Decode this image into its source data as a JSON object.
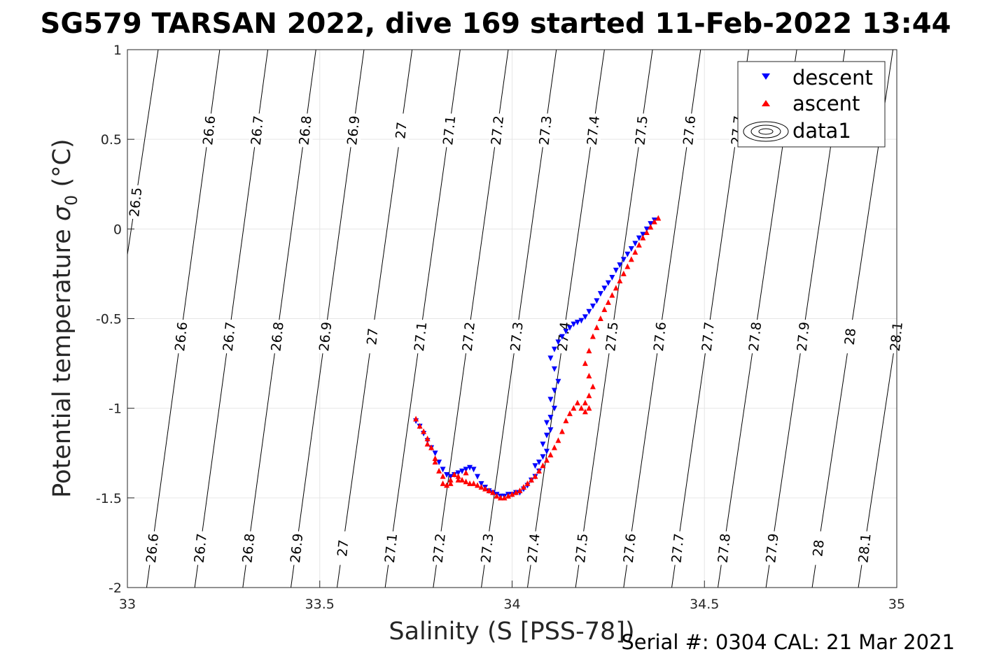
{
  "chart_data": {
    "type": "scatter",
    "title": "SG579 TARSAN 2022, dive 169 started 11-Feb-2022 13:44",
    "xlabel": "Salinity (S [PSS-78])",
    "ylabel_main": "Potential temperature ",
    "ylabel_sigma": "σ",
    "ylabel_sub": "0",
    "ylabel_unit": " (°C)",
    "xlim": [
      33,
      35
    ],
    "ylim": [
      -2,
      1
    ],
    "xticks": [
      "33",
      "33.5",
      "34",
      "34.5",
      "35"
    ],
    "yticks": [
      "-2",
      "-1.5",
      "-1",
      "-0.5",
      "0",
      "0.5",
      "1"
    ],
    "grid": true,
    "legend_position": "top-right",
    "legend": [
      "descent",
      "ascent",
      "data1"
    ],
    "footer": "Serial #: 0304  CAL: 21 Mar 2021",
    "colors": {
      "descent": "#0000ff",
      "ascent": "#ff0000",
      "contour": "#000000",
      "grid": "#e6e6e6"
    },
    "isopycnals": [
      {
        "level": 26.5,
        "bottom_x": 32.87,
        "top_x": 33.08
      },
      {
        "level": 26.6,
        "bottom_x": 33.05,
        "top_x": 33.24
      },
      {
        "level": 26.7,
        "bottom_x": 33.175,
        "top_x": 33.365
      },
      {
        "level": 26.8,
        "bottom_x": 33.3,
        "top_x": 33.49
      },
      {
        "level": 26.9,
        "bottom_x": 33.425,
        "top_x": 33.615
      },
      {
        "level": 27.0,
        "bottom_x": 33.545,
        "top_x": 33.74
      },
      {
        "level": 27.1,
        "bottom_x": 33.67,
        "top_x": 33.865
      },
      {
        "level": 27.2,
        "bottom_x": 33.795,
        "top_x": 33.99
      },
      {
        "level": 27.3,
        "bottom_x": 33.92,
        "top_x": 34.115
      },
      {
        "level": 27.4,
        "bottom_x": 34.04,
        "top_x": 34.24
      },
      {
        "level": 27.5,
        "bottom_x": 34.165,
        "top_x": 34.365
      },
      {
        "level": 27.6,
        "bottom_x": 34.29,
        "top_x": 34.49
      },
      {
        "level": 27.7,
        "bottom_x": 34.415,
        "top_x": 34.615
      },
      {
        "level": 27.8,
        "bottom_x": 34.535,
        "top_x": 34.74
      },
      {
        "level": 27.9,
        "bottom_x": 34.66,
        "top_x": 34.865
      },
      {
        "level": 28.0,
        "bottom_x": 34.78,
        "top_x": 34.99
      },
      {
        "level": 28.1,
        "bottom_x": 34.9,
        "top_x": 35.11
      }
    ],
    "isopycnal_label_rows": [
      {
        "y": 0.55,
        "levels": [
          "26.6",
          "26.7",
          "26.8",
          "26.9",
          "27",
          "27.1",
          "27.2",
          "27.3",
          "27.4",
          "27.5",
          "27.6",
          "27.7"
        ]
      },
      {
        "y": 0.15,
        "levels": [
          "26.5"
        ]
      },
      {
        "y": -0.6,
        "levels": [
          "26.6",
          "26.7",
          "26.8",
          "26.9",
          "27",
          "27.1",
          "27.2",
          "27.3",
          "27.4",
          "27.5",
          "27.6",
          "27.7",
          "27.8",
          "27.9",
          "28",
          "28.1"
        ]
      },
      {
        "y": -1.78,
        "levels": [
          "26.6",
          "26.7",
          "26.8",
          "26.9",
          "27",
          "27.1",
          "27.2",
          "27.3",
          "27.4",
          "27.5",
          "27.6",
          "27.7",
          "27.8",
          "27.9",
          "28",
          "28.1"
        ]
      }
    ],
    "series": [
      {
        "name": "descent",
        "marker": "triangle-down",
        "x": [
          34.37,
          34.36,
          34.35,
          34.34,
          34.33,
          34.32,
          34.31,
          34.3,
          34.29,
          34.28,
          34.27,
          34.26,
          34.25,
          34.24,
          34.23,
          34.22,
          34.21,
          34.2,
          34.19,
          34.18,
          34.17,
          34.16,
          34.15,
          34.14,
          34.13,
          34.12,
          34.11,
          34.1,
          34.11,
          34.12,
          34.11,
          34.1,
          34.11,
          34.1,
          34.09,
          34.1,
          34.09,
          34.08,
          34.09,
          34.08,
          34.07,
          34.06,
          34.07,
          34.06,
          34.05,
          34.04,
          34.03,
          34.02,
          34.01,
          34.0,
          33.99,
          33.98,
          33.97,
          33.96,
          33.95,
          33.94,
          33.93,
          33.92,
          33.91,
          33.9,
          33.89,
          33.88,
          33.87,
          33.86,
          33.85,
          33.84,
          33.83,
          33.82,
          33.81,
          33.8,
          33.79,
          33.78,
          33.77,
          33.76,
          33.75
        ],
        "y": [
          0.05,
          0.03,
          0.0,
          -0.03,
          -0.05,
          -0.08,
          -0.11,
          -0.14,
          -0.17,
          -0.2,
          -0.23,
          -0.27,
          -0.3,
          -0.33,
          -0.36,
          -0.4,
          -0.43,
          -0.46,
          -0.49,
          -0.51,
          -0.52,
          -0.53,
          -0.55,
          -0.57,
          -0.6,
          -0.63,
          -0.67,
          -0.72,
          -0.78,
          -0.85,
          -0.9,
          -0.95,
          -1.0,
          -1.05,
          -1.08,
          -1.12,
          -1.15,
          -1.2,
          -1.24,
          -1.27,
          -1.3,
          -1.32,
          -1.35,
          -1.38,
          -1.4,
          -1.43,
          -1.45,
          -1.47,
          -1.47,
          -1.48,
          -1.48,
          -1.49,
          -1.49,
          -1.48,
          -1.47,
          -1.46,
          -1.44,
          -1.42,
          -1.38,
          -1.34,
          -1.33,
          -1.34,
          -1.35,
          -1.36,
          -1.37,
          -1.38,
          -1.37,
          -1.34,
          -1.3,
          -1.25,
          -1.22,
          -1.18,
          -1.14,
          -1.1,
          -1.07
        ]
      },
      {
        "name": "ascent",
        "marker": "triangle-up",
        "x": [
          34.38,
          34.37,
          34.36,
          34.35,
          34.34,
          34.33,
          34.32,
          34.31,
          34.3,
          34.29,
          34.28,
          34.27,
          34.26,
          34.25,
          34.24,
          34.23,
          34.22,
          34.21,
          34.2,
          34.19,
          34.2,
          34.21,
          34.2,
          34.19,
          34.2,
          34.19,
          34.18,
          34.17,
          34.16,
          34.15,
          34.14,
          34.13,
          34.12,
          34.11,
          34.1,
          34.09,
          34.08,
          34.07,
          34.06,
          34.05,
          34.04,
          34.03,
          34.02,
          34.01,
          34.0,
          33.99,
          33.98,
          33.97,
          33.96,
          33.95,
          33.94,
          33.93,
          33.92,
          33.91,
          33.9,
          33.89,
          33.88,
          33.87,
          33.86,
          33.85,
          33.84,
          33.83,
          33.82,
          33.81,
          33.8,
          33.79,
          33.78,
          33.77,
          33.76,
          33.75,
          33.78,
          33.8,
          33.82,
          33.84,
          33.86,
          33.88
        ],
        "y": [
          0.06,
          0.04,
          0.01,
          -0.02,
          -0.05,
          -0.09,
          -0.13,
          -0.17,
          -0.21,
          -0.25,
          -0.29,
          -0.33,
          -0.37,
          -0.41,
          -0.45,
          -0.5,
          -0.55,
          -0.6,
          -0.68,
          -0.75,
          -0.82,
          -0.88,
          -0.93,
          -0.97,
          -1.0,
          -1.02,
          -1.0,
          -0.97,
          -1.0,
          -1.03,
          -1.07,
          -1.13,
          -1.18,
          -1.22,
          -1.26,
          -1.29,
          -1.32,
          -1.35,
          -1.38,
          -1.4,
          -1.42,
          -1.44,
          -1.46,
          -1.47,
          -1.48,
          -1.49,
          -1.5,
          -1.5,
          -1.49,
          -1.47,
          -1.46,
          -1.45,
          -1.44,
          -1.43,
          -1.42,
          -1.42,
          -1.41,
          -1.4,
          -1.38,
          -1.37,
          -1.4,
          -1.43,
          -1.42,
          -1.35,
          -1.28,
          -1.22,
          -1.17,
          -1.13,
          -1.1,
          -1.06,
          -1.2,
          -1.3,
          -1.38,
          -1.42,
          -1.4,
          -1.36
        ]
      }
    ]
  }
}
